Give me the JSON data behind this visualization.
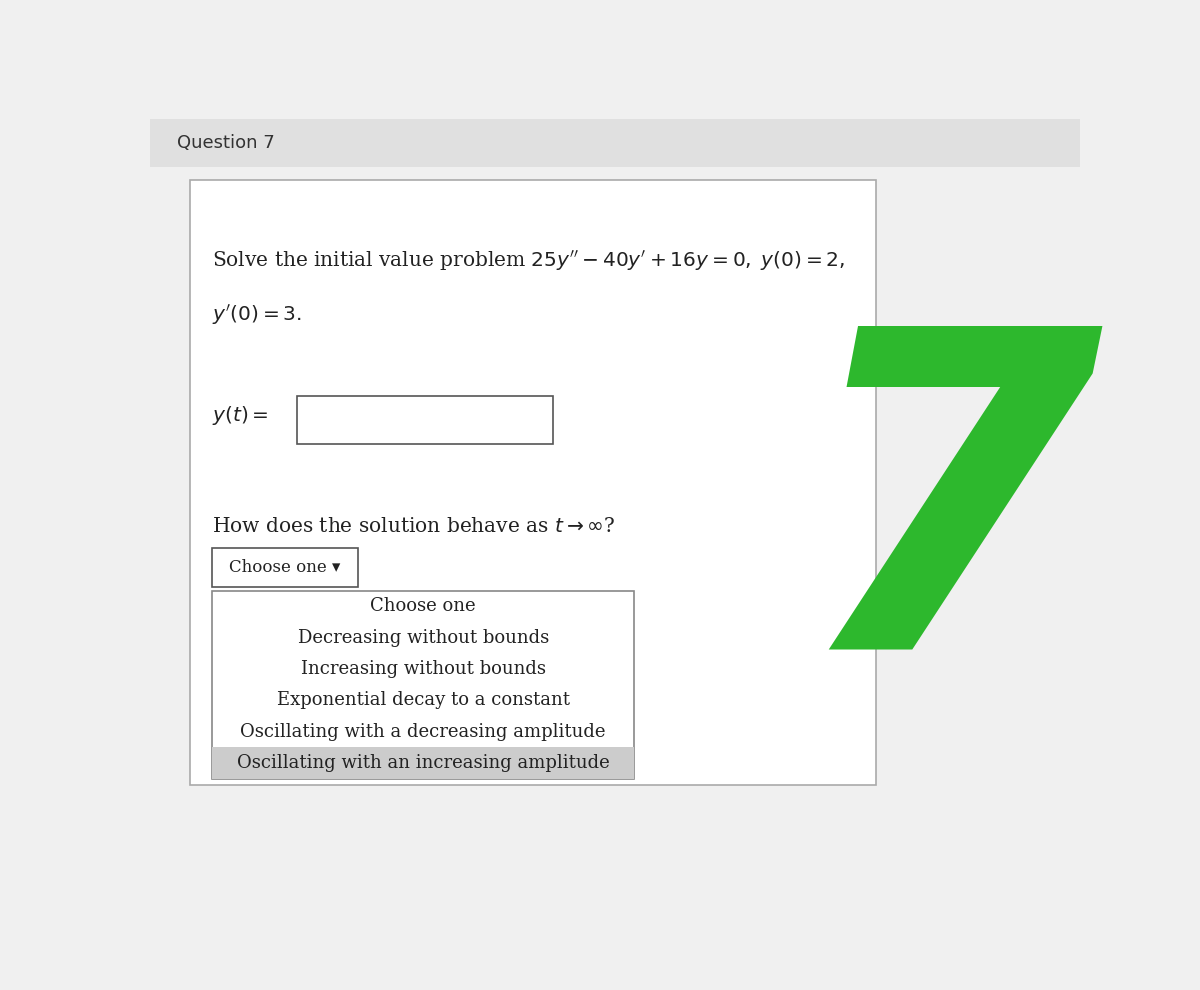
{
  "title": "Question 7",
  "title_bg": "#e0e0e0",
  "bg_color": "#f0f0f0",
  "content_bg": "#ffffff",
  "problem_text_line1": "Solve the initial value problem $25y'' - 40y' + 16y = 0,\\; y(0) = 2,$",
  "problem_text_line2": "$y'(0) = 3.$",
  "yt_label": "$y(t) =$",
  "behavior_text": "How does the solution behave as $t \\to \\infty$?",
  "dropdown_label": "Choose one ▾",
  "dropdown_items": [
    "Choose one",
    "Decreasing without bounds",
    "Increasing without bounds",
    "Exponential decay to a constant",
    "Oscillating with a decreasing amplitude",
    "Oscillating with an increasing amplitude"
  ],
  "last_item_bg": "#cccccc",
  "number_color": "#2db82d",
  "number_text": "7",
  "box_edge_color": "#888888",
  "content_box_edge": "#aaaaaa"
}
